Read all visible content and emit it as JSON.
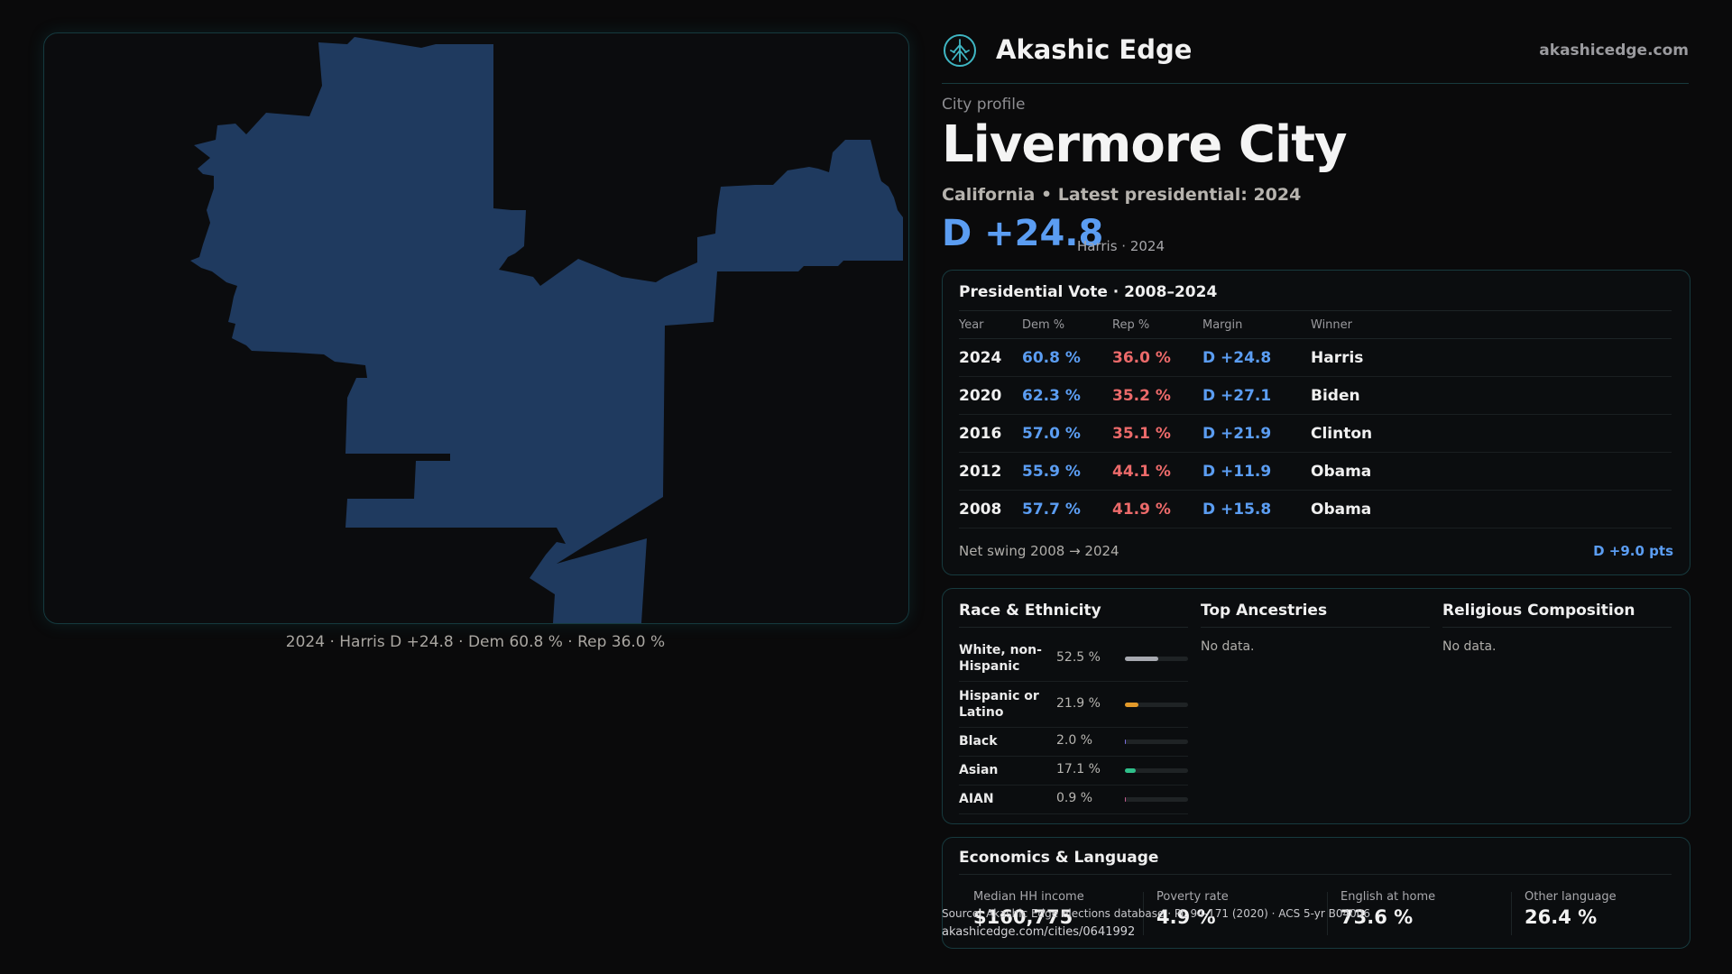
{
  "header": {
    "brand": "Akashic Edge",
    "domain": "akashicedge.com",
    "logo_icon": "tree-circle-icon",
    "accent": "#3fb6c3"
  },
  "profile": {
    "label": "City profile",
    "city": "Livermore City",
    "subline": "California • Latest presidential: 2024",
    "margin": "D +24.8",
    "margin_note": "Harris · 2024"
  },
  "map": {
    "fill_color": "#1f3a5f",
    "caption": "2024 · Harris D +24.8 · Dem 60.8 % · Rep 36.0 %"
  },
  "vote": {
    "title": "Presidential Vote · 2008–2024",
    "headers": [
      "Year",
      "Dem %",
      "Rep %",
      "Margin",
      "Winner"
    ],
    "rows": [
      {
        "year": "2024",
        "dem": "60.8 %",
        "rep": "36.0 %",
        "margin": "D +24.8",
        "winner": "Harris"
      },
      {
        "year": "2020",
        "dem": "62.3 %",
        "rep": "35.2 %",
        "margin": "D +27.1",
        "winner": "Biden"
      },
      {
        "year": "2016",
        "dem": "57.0 %",
        "rep": "35.1 %",
        "margin": "D +21.9",
        "winner": "Clinton"
      },
      {
        "year": "2012",
        "dem": "55.9 %",
        "rep": "44.1 %",
        "margin": "D +11.9",
        "winner": "Obama"
      },
      {
        "year": "2008",
        "dem": "57.7 %",
        "rep": "41.9 %",
        "margin": "D +15.8",
        "winner": "Obama"
      }
    ],
    "net_swing_label": "Net swing 2008 → 2024",
    "net_swing_value": "D +9.0 pts",
    "dem_color": "#5b9df2",
    "rep_color": "#ec6a6a"
  },
  "demographics": {
    "race_title": "Race & Ethnicity",
    "race": [
      {
        "label": "White, non-Hispanic",
        "pct": "52.5 %",
        "value": 52.5,
        "color": "#a7a9b0"
      },
      {
        "label": "Hispanic or Latino",
        "pct": "21.9 %",
        "value": 21.9,
        "color": "#e39a2a"
      },
      {
        "label": "Black",
        "pct": "2.0 %",
        "value": 2.0,
        "color": "#7b6fe0"
      },
      {
        "label": "Asian",
        "pct": "17.1 %",
        "value": 17.1,
        "color": "#2fbf8a"
      },
      {
        "label": "AIAN",
        "pct": "0.9 %",
        "value": 0.9,
        "color": "#c25b8f"
      }
    ],
    "ancestry_title": "Top Ancestries",
    "ancestry_nodata": "No data.",
    "religion_title": "Religious Composition",
    "religion_nodata": "No data."
  },
  "economics": {
    "title": "Economics & Language",
    "items": [
      {
        "label": "Median HH income",
        "value": "$160,775"
      },
      {
        "label": "Poverty rate",
        "value": "4.9 %"
      },
      {
        "label": "English at home",
        "value": "73.6 %"
      },
      {
        "label": "Other language",
        "value": "26.4 %"
      }
    ]
  },
  "footer": {
    "source": "Source: Akashic Edge elections database · PL 94-171 (2020) · ACS 5-yr B04006",
    "url": "akashicedge.com/cities/0641992"
  }
}
